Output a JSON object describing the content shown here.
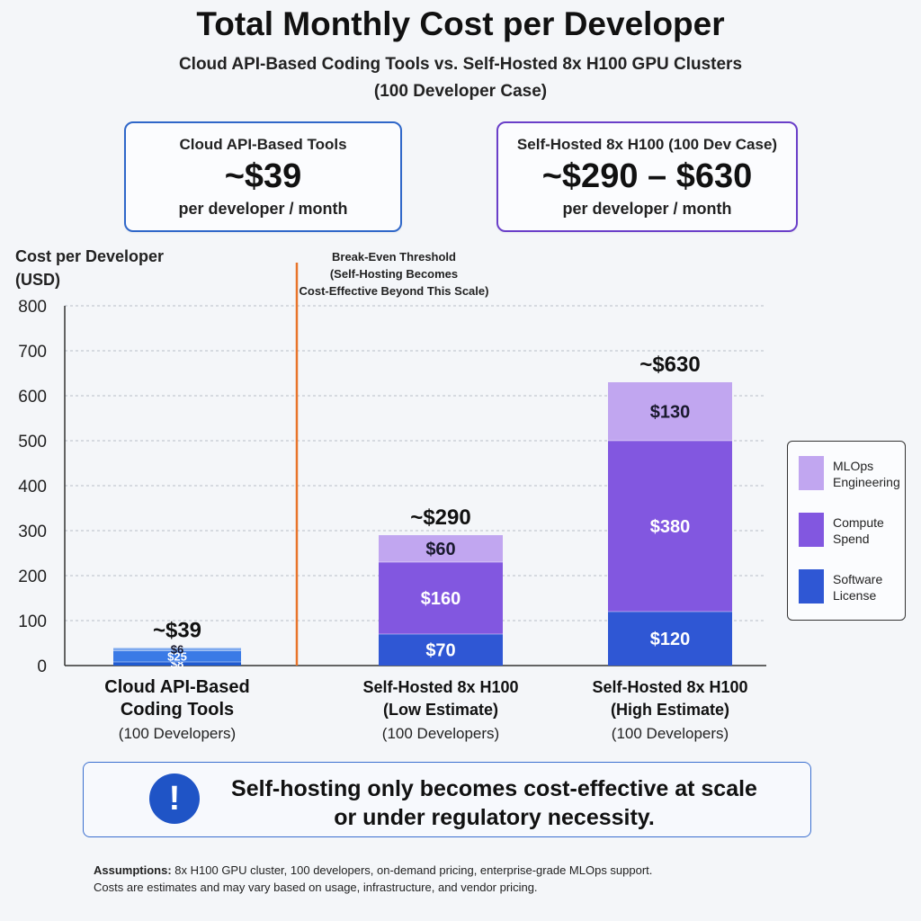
{
  "title": "Total Monthly Cost per Developer",
  "subtitle_line1": "Cloud API-Based Coding Tools vs. Self-Hosted 8x H100 GPU Clusters",
  "subtitle_line2": "(100 Developer Case)",
  "summary_boxes": [
    {
      "label": "Cloud API-Based Tools",
      "value": "~$39",
      "unit": "per developer / month"
    },
    {
      "label": "Self-Hosted 8x H100 (100 Dev Case)",
      "value": "~$290 – $630",
      "unit": "per developer / month"
    }
  ],
  "colors": {
    "cloud_light": "#7ea9ee",
    "cloud_mid": "#3a7ae6",
    "cloud_dark": "#1f5ad0",
    "software_license": "#2f57d4",
    "compute_spend": "#8257e0",
    "mlops_engineering": "#c1a6f0",
    "threshold_line": "#e8742b",
    "callout_icon": "#1f54c6"
  },
  "chart_data": {
    "type": "bar",
    "stacked": true,
    "ylabel_line1": "Cost per Developer",
    "ylabel_line2": "(USD)",
    "ylim": [
      0,
      800
    ],
    "yticks": [
      0,
      100,
      200,
      300,
      400,
      500,
      600,
      700,
      800
    ],
    "grid": true,
    "legend_position": "right",
    "categories": [
      {
        "line1": "Cloud API-Based",
        "line2": "Coding Tools",
        "line3": "(100 Developers)"
      },
      {
        "line1": "Self-Hosted 8x H100",
        "line2": "(Low Estimate)",
        "line3": "(100 Developers)"
      },
      {
        "line1": "Self-Hosted 8x H100",
        "line2": "(High Estimate)",
        "line3": "(100 Developers)"
      }
    ],
    "bars": [
      {
        "total_label": "~$39",
        "segments": [
          {
            "value": 8,
            "label": "$8",
            "color_key": "cloud_dark"
          },
          {
            "value": 25,
            "label": "$25",
            "color_key": "cloud_mid"
          },
          {
            "value": 6,
            "label": "$6",
            "color_key": "cloud_light"
          }
        ]
      },
      {
        "total_label": "~$290",
        "segments": [
          {
            "value": 70,
            "label": "$70",
            "color_key": "software_license"
          },
          {
            "value": 160,
            "label": "$160",
            "color_key": "compute_spend"
          },
          {
            "value": 60,
            "label": "$60",
            "color_key": "mlops_engineering"
          }
        ]
      },
      {
        "total_label": "~$630",
        "segments": [
          {
            "value": 120,
            "label": "$120",
            "color_key": "software_license"
          },
          {
            "value": 380,
            "label": "$380",
            "color_key": "compute_spend"
          },
          {
            "value": 130,
            "label": "$130",
            "color_key": "mlops_engineering"
          }
        ]
      }
    ],
    "legend": [
      {
        "line1": "MLOps",
        "line2": "Engineering",
        "color_key": "mlops_engineering"
      },
      {
        "line1": "Compute",
        "line2": "Spend",
        "color_key": "compute_spend"
      },
      {
        "line1": "Software",
        "line2": "License",
        "color_key": "software_license"
      }
    ],
    "threshold": {
      "line1": "Break-Even Threshold",
      "line2": "(Self-Hosting Becomes",
      "line3": "Cost-Effective Beyond This Scale)"
    }
  },
  "callout": {
    "icon": "exclamation-icon",
    "icon_glyph": "!",
    "line1": "Self-hosting only becomes cost-effective at scale",
    "line2": "or under regulatory necessity."
  },
  "assumptions": {
    "label": "Assumptions:",
    "line1": " 8x H100 GPU cluster, 100 developers, on-demand pricing, enterprise-grade MLOps support.",
    "line2": "Costs are estimates and may vary based on usage, infrastructure, and vendor pricing."
  }
}
